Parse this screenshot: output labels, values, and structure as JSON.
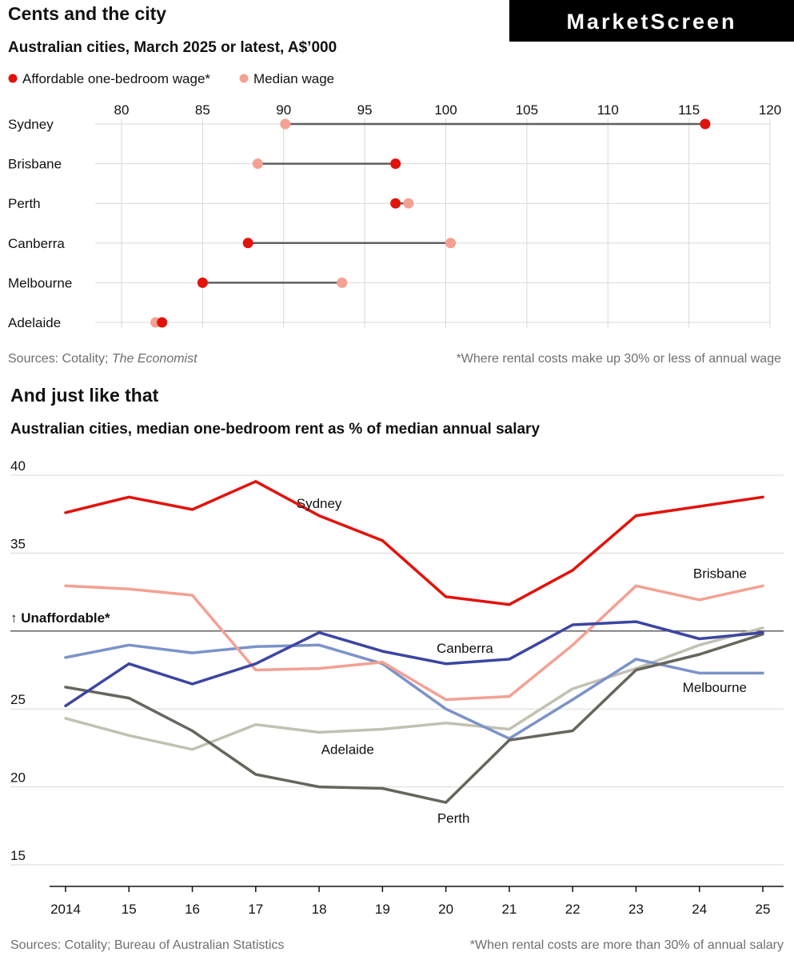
{
  "logo": {
    "text": "MarketScreen"
  },
  "colors": {
    "sydney": "#e3120b",
    "brisbane": "#f4a093",
    "canberra": "#3b46a2",
    "melbourne": "#7b93c9",
    "adelaide": "#c2c1b2",
    "perth": "#67665c",
    "affordable_dot": "#e3120b",
    "median_dot": "#f4a093",
    "connector": "#5f5f5f",
    "grid": "#d9d9d9"
  },
  "chart_data": [
    {
      "type": "dumbbell",
      "title": "Cents and the city",
      "subtitle": "Australian cities, March 2025 or latest, A$’000",
      "legend": [
        {
          "name": "Affordable one-bedroom wage*",
          "color": "#e3120b"
        },
        {
          "name": "Median wage",
          "color": "#f4a093"
        }
      ],
      "x_ticks": [
        "80",
        "85",
        "90",
        "95",
        "100",
        "105",
        "110",
        "115",
        "120"
      ],
      "xlim": [
        80,
        120
      ],
      "categories": [
        "Sydney",
        "Brisbane",
        "Perth",
        "Canberra",
        "Melbourne",
        "Adelaide"
      ],
      "series": [
        {
          "name": "Affordable one-bedroom wage*",
          "values": [
            116.0,
            96.9,
            96.9,
            87.8,
            85.0,
            82.5
          ]
        },
        {
          "name": "Median wage",
          "values": [
            90.1,
            88.4,
            97.7,
            100.3,
            93.6,
            82.1
          ]
        }
      ],
      "source": "Sources: Cotality; ",
      "source_italic": "The Economist",
      "footnote": "*Where rental costs make up 30% or less of annual wage"
    },
    {
      "type": "line",
      "title": "And just like that",
      "subtitle": "Australian cities, median one-bedroom rent as % of median annual salary",
      "x": [
        "2014",
        "15",
        "16",
        "17",
        "18",
        "19",
        "20",
        "21",
        "22",
        "23",
        "24",
        "25"
      ],
      "y_ticks": [
        "40",
        "35",
        "25",
        "20",
        "15"
      ],
      "ylim": [
        15,
        40
      ],
      "threshold": {
        "value": 30,
        "label": "↑ Unaffordable*"
      },
      "series": [
        {
          "name": "Sydney",
          "values": [
            37.6,
            38.6,
            37.8,
            39.6,
            37.4,
            35.8,
            32.2,
            31.7,
            33.9,
            37.4,
            38.0,
            38.6
          ]
        },
        {
          "name": "Brisbane",
          "values": [
            32.9,
            32.7,
            32.3,
            27.5,
            27.6,
            28.0,
            25.6,
            25.8,
            29.1,
            32.9,
            32.0,
            32.9
          ]
        },
        {
          "name": "Canberra",
          "values": [
            25.2,
            27.9,
            26.6,
            27.9,
            29.9,
            28.7,
            27.9,
            28.2,
            30.4,
            30.6,
            29.5,
            29.9
          ]
        },
        {
          "name": "Melbourne",
          "values": [
            28.3,
            29.1,
            28.6,
            29.0,
            29.1,
            27.9,
            25.0,
            23.1,
            25.6,
            28.2,
            27.3,
            27.3
          ]
        },
        {
          "name": "Adelaide",
          "values": [
            24.4,
            23.3,
            22.4,
            24.0,
            23.5,
            23.7,
            24.1,
            23.7,
            26.3,
            27.6,
            29.1,
            30.2
          ]
        },
        {
          "name": "Perth",
          "values": [
            26.4,
            25.7,
            23.6,
            20.8,
            20.0,
            19.9,
            19.0,
            23.0,
            23.6,
            27.5,
            28.5,
            29.8
          ]
        }
      ],
      "source": "Sources: Cotality; Bureau of Australian Statistics",
      "footnote": "*When rental costs are more than 30% of annual salary"
    }
  ]
}
